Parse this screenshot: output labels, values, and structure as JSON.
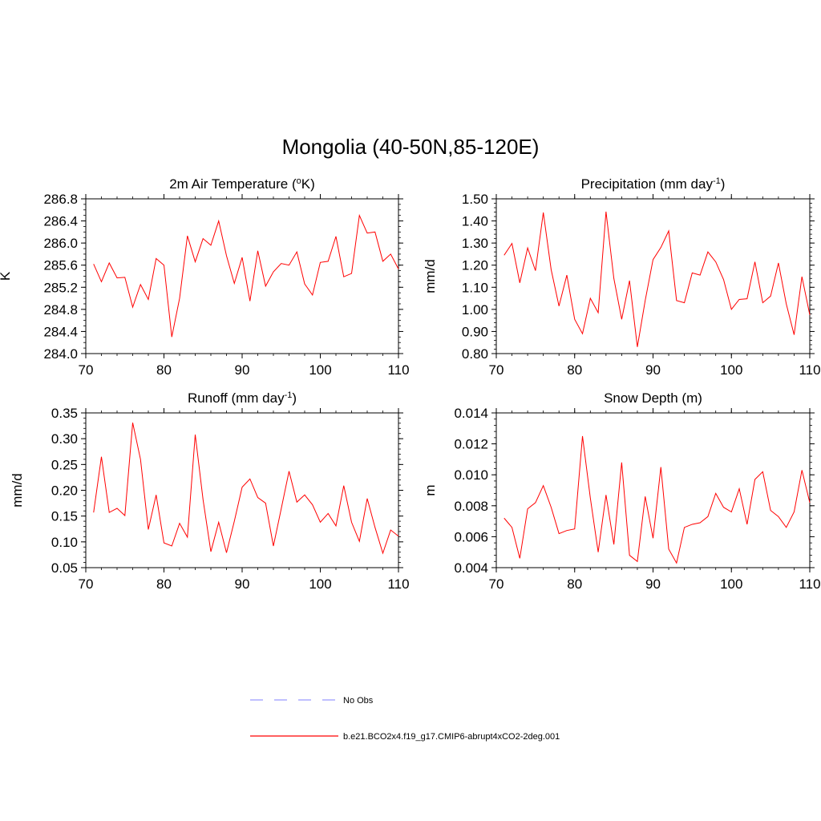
{
  "title": "Mongolia (40-50N,85-120E)",
  "colors": {
    "model": "#ff0000",
    "obs": "#9999ff",
    "axis": "#000000"
  },
  "legend": {
    "obs_label": "No Obs",
    "model_label": "b.e21.BCO2x4.f19_g17.CMIP6-abrupt4xCO2-2deg.001"
  },
  "chart_data": [
    {
      "type": "line",
      "title": "2m Air Temperature (",
      "title_sup_prefix": "o",
      "title_suffix": "K)",
      "ylabel": "K",
      "xlim": [
        70,
        110
      ],
      "ylim": [
        284.0,
        286.8
      ],
      "xticks": [
        70,
        80,
        90,
        100,
        110
      ],
      "yticks": [
        "284.0",
        "284.4",
        "284.8",
        "285.2",
        "285.6",
        "286.0",
        "286.4",
        "286.8"
      ],
      "yminor": 0.1,
      "x": [
        71,
        72,
        73,
        74,
        75,
        76,
        77,
        78,
        79,
        80,
        81,
        82,
        83,
        84,
        85,
        86,
        87,
        88,
        89,
        90,
        91,
        92,
        93,
        94,
        95,
        96,
        97,
        98,
        99,
        100,
        101,
        102,
        103,
        104,
        105,
        106,
        107,
        108,
        109,
        110
      ],
      "series": [
        {
          "name": "b.e21.BCO2x4.f19_g17.CMIP6-abrupt4xCO2-2deg.001",
          "values": [
            285.62,
            285.3,
            285.64,
            285.37,
            285.38,
            284.84,
            285.25,
            284.98,
            285.72,
            285.6,
            284.3,
            285.0,
            286.13,
            285.66,
            286.08,
            285.96,
            286.4,
            285.77,
            285.27,
            285.74,
            284.95,
            285.86,
            285.22,
            285.48,
            285.63,
            285.6,
            285.84,
            285.26,
            285.06,
            285.65,
            285.67,
            286.12,
            285.39,
            285.45,
            286.5,
            286.18,
            286.2,
            285.67,
            285.8,
            285.53
          ]
        }
      ]
    },
    {
      "type": "line",
      "title": "Precipitation (mm day",
      "title_sup_suffix": "-1",
      "title_suffix": ")",
      "ylabel": "mm/d",
      "xlim": [
        70,
        110
      ],
      "ylim": [
        0.8,
        1.5
      ],
      "xticks": [
        70,
        80,
        90,
        100,
        110
      ],
      "yticks": [
        "0.80",
        "0.90",
        "1.00",
        "1.10",
        "1.20",
        "1.30",
        "1.40",
        "1.50"
      ],
      "yminor": 0.02,
      "x": [
        71,
        72,
        73,
        74,
        75,
        76,
        77,
        78,
        79,
        80,
        81,
        82,
        83,
        84,
        85,
        86,
        87,
        88,
        89,
        90,
        91,
        92,
        93,
        94,
        95,
        96,
        97,
        98,
        99,
        100,
        101,
        102,
        103,
        104,
        105,
        106,
        107,
        108,
        109,
        110
      ],
      "series": [
        {
          "name": "b.e21.BCO2x4.f19_g17.CMIP6-abrupt4xCO2-2deg.001",
          "values": [
            1.245,
            1.298,
            1.12,
            1.278,
            1.175,
            1.438,
            1.18,
            1.015,
            1.155,
            0.955,
            0.89,
            1.05,
            0.985,
            1.442,
            1.14,
            0.955,
            1.13,
            0.83,
            1.04,
            1.225,
            1.28,
            1.355,
            1.04,
            1.03,
            1.165,
            1.155,
            1.26,
            1.215,
            1.135,
            1.0,
            1.045,
            1.048,
            1.215,
            1.03,
            1.06,
            1.21,
            1.025,
            0.885,
            1.148,
            0.975
          ]
        }
      ]
    },
    {
      "type": "line",
      "title": "Runoff (mm day",
      "title_sup_suffix": "-1",
      "title_suffix": ")",
      "ylabel": "mm/d",
      "xlim": [
        70,
        110
      ],
      "ylim": [
        0.05,
        0.35
      ],
      "xticks": [
        70,
        80,
        90,
        100,
        110
      ],
      "yticks": [
        "0.05",
        "0.10",
        "0.15",
        "0.20",
        "0.25",
        "0.30",
        "0.35"
      ],
      "yminor": 0.01,
      "x": [
        71,
        72,
        73,
        74,
        75,
        76,
        77,
        78,
        79,
        80,
        81,
        82,
        83,
        84,
        85,
        86,
        87,
        88,
        89,
        90,
        91,
        92,
        93,
        94,
        95,
        96,
        97,
        98,
        99,
        100,
        101,
        102,
        103,
        104,
        105,
        106,
        107,
        108,
        109,
        110
      ],
      "series": [
        {
          "name": "b.e21.BCO2x4.f19_g17.CMIP6-abrupt4xCO2-2deg.001",
          "values": [
            0.157,
            0.265,
            0.157,
            0.165,
            0.151,
            0.331,
            0.26,
            0.124,
            0.191,
            0.098,
            0.092,
            0.136,
            0.109,
            0.308,
            0.182,
            0.081,
            0.138,
            0.079,
            0.14,
            0.206,
            0.222,
            0.186,
            0.175,
            0.092,
            0.164,
            0.237,
            0.177,
            0.191,
            0.172,
            0.138,
            0.155,
            0.131,
            0.209,
            0.138,
            0.101,
            0.184,
            0.128,
            0.078,
            0.123,
            0.111
          ]
        }
      ]
    },
    {
      "type": "line",
      "title": "Snow Depth (m)",
      "ylabel": "m",
      "xlim": [
        70,
        110
      ],
      "ylim": [
        0.004,
        0.014
      ],
      "xticks": [
        70,
        80,
        90,
        100,
        110
      ],
      "yticks": [
        "0.004",
        "0.006",
        "0.008",
        "0.010",
        "0.012",
        "0.014"
      ],
      "yminor": 0.0004,
      "x": [
        71,
        72,
        73,
        74,
        75,
        76,
        77,
        78,
        79,
        80,
        81,
        82,
        83,
        84,
        85,
        86,
        87,
        88,
        89,
        90,
        91,
        92,
        93,
        94,
        95,
        96,
        97,
        98,
        99,
        100,
        101,
        102,
        103,
        104,
        105,
        106,
        107,
        108,
        109,
        110
      ],
      "series": [
        {
          "name": "b.e21.BCO2x4.f19_g17.CMIP6-abrupt4xCO2-2deg.001",
          "values": [
            0.0072,
            0.0066,
            0.0046,
            0.0078,
            0.0082,
            0.0093,
            0.0079,
            0.0062,
            0.0064,
            0.0065,
            0.0125,
            0.0085,
            0.005,
            0.0087,
            0.0055,
            0.0108,
            0.0048,
            0.0044,
            0.0086,
            0.0059,
            0.0105,
            0.0052,
            0.0043,
            0.0066,
            0.0068,
            0.0069,
            0.0073,
            0.0088,
            0.0079,
            0.0076,
            0.0091,
            0.0068,
            0.0097,
            0.0102,
            0.0077,
            0.0073,
            0.0066,
            0.0076,
            0.0103,
            0.0082
          ]
        }
      ]
    }
  ]
}
